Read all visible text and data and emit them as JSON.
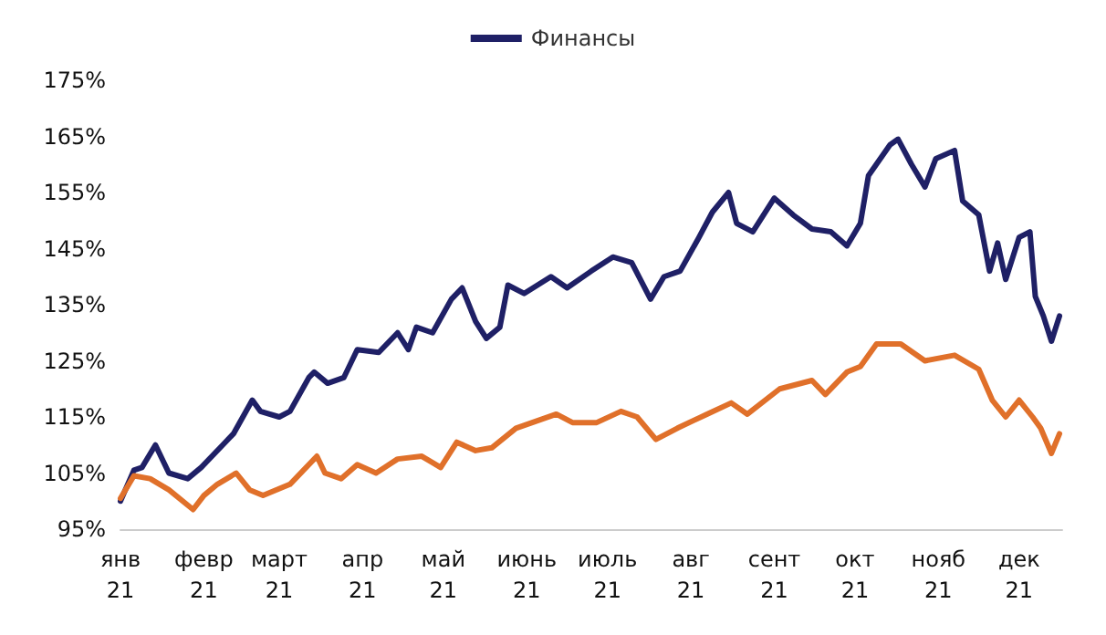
{
  "chart_data": {
    "type": "line",
    "xlim": [
      "2021-01-01",
      "2021-12-17"
    ],
    "xticks": [
      {
        "value": "2021-01-01",
        "label": "янв\n21"
      },
      {
        "value": "2021-02-01",
        "label": "февр\n21"
      },
      {
        "value": "2021-03-01",
        "label": "март\n21"
      },
      {
        "value": "2021-04-01",
        "label": "апр\n21"
      },
      {
        "value": "2021-05-01",
        "label": "май\n21"
      },
      {
        "value": "2021-06-01",
        "label": "июнь\n21"
      },
      {
        "value": "2021-07-01",
        "label": "июль\n21"
      },
      {
        "value": "2021-08-01",
        "label": "авг\n21"
      },
      {
        "value": "2021-09-01",
        "label": "сент\n21"
      },
      {
        "value": "2021-10-01",
        "label": "окт\n21"
      },
      {
        "value": "2021-11-01",
        "label": "нояб\n21"
      },
      {
        "value": "2021-12-01",
        "label": "дек\n21"
      }
    ],
    "ylim": [
      95,
      175
    ],
    "yticks": [
      {
        "value": 95,
        "label": "95%"
      },
      {
        "value": 105,
        "label": "105%"
      },
      {
        "value": 115,
        "label": "115%"
      },
      {
        "value": 125,
        "label": "125%"
      },
      {
        "value": 135,
        "label": "135%"
      },
      {
        "value": 145,
        "label": "145%"
      },
      {
        "value": 155,
        "label": "155%"
      },
      {
        "value": 165,
        "label": "165%"
      },
      {
        "value": 175,
        "label": "175%"
      }
    ],
    "grid": false,
    "legend": "top",
    "marker": "none",
    "line_style": "solid",
    "series": [
      {
        "name": "Финансы",
        "color": "#1f2066",
        "x": [
          "2021-01-01",
          "2021-01-06",
          "2021-01-09",
          "2021-01-14",
          "2021-01-19",
          "2021-01-26",
          "2021-01-31",
          "2021-02-08",
          "2021-02-12",
          "2021-02-19",
          "2021-02-22",
          "2021-03-01",
          "2021-03-05",
          "2021-03-12",
          "2021-03-14",
          "2021-03-19",
          "2021-03-25",
          "2021-03-30",
          "2021-04-07",
          "2021-04-14",
          "2021-04-18",
          "2021-04-21",
          "2021-04-27",
          "2021-05-04",
          "2021-05-08",
          "2021-05-13",
          "2021-05-17",
          "2021-05-22",
          "2021-05-25",
          "2021-05-31",
          "2021-06-10",
          "2021-06-16",
          "2021-06-25",
          "2021-07-03",
          "2021-07-10",
          "2021-07-17",
          "2021-07-22",
          "2021-07-28",
          "2021-08-04",
          "2021-08-09",
          "2021-08-15",
          "2021-08-18",
          "2021-08-24",
          "2021-09-01",
          "2021-09-08",
          "2021-09-15",
          "2021-09-22",
          "2021-09-28",
          "2021-10-03",
          "2021-10-06",
          "2021-10-14",
          "2021-10-17",
          "2021-10-22",
          "2021-10-27",
          "2021-10-31",
          "2021-11-07",
          "2021-11-10",
          "2021-11-16",
          "2021-11-20",
          "2021-11-23",
          "2021-11-26",
          "2021-12-01",
          "2021-12-05",
          "2021-12-07",
          "2021-12-10",
          "2021-12-13",
          "2021-12-16"
        ],
        "values": [
          100,
          105.5,
          106,
          110,
          105,
          104,
          106,
          110,
          112,
          118,
          116,
          115,
          116,
          122,
          123,
          121,
          122,
          127,
          126.5,
          130,
          127,
          131,
          130,
          136,
          138,
          132,
          129,
          131,
          138.5,
          137,
          140,
          138,
          141,
          143.5,
          142.5,
          136,
          140,
          141,
          147,
          151.5,
          155,
          149.5,
          148,
          154,
          151,
          148.5,
          148,
          145.5,
          149.5,
          158,
          163.5,
          164.5,
          160,
          156,
          161,
          162.5,
          153.5,
          151,
          141,
          146,
          139.5,
          147,
          148,
          136.5,
          133,
          128.5,
          133
        ]
      },
      {
        "color": "#e0702a",
        "x": [
          "2021-01-01",
          "2021-01-06",
          "2021-01-12",
          "2021-01-19",
          "2021-01-28",
          "2021-02-01",
          "2021-02-06",
          "2021-02-13",
          "2021-02-18",
          "2021-02-23",
          "2021-03-05",
          "2021-03-15",
          "2021-03-18",
          "2021-03-24",
          "2021-03-30",
          "2021-04-06",
          "2021-04-14",
          "2021-04-23",
          "2021-04-30",
          "2021-05-06",
          "2021-05-13",
          "2021-05-19",
          "2021-05-28",
          "2021-06-12",
          "2021-06-18",
          "2021-06-27",
          "2021-07-06",
          "2021-07-12",
          "2021-07-19",
          "2021-07-27",
          "2021-08-07",
          "2021-08-16",
          "2021-08-22",
          "2021-09-03",
          "2021-09-15",
          "2021-09-20",
          "2021-09-28",
          "2021-10-03",
          "2021-10-09",
          "2021-10-18",
          "2021-10-27",
          "2021-11-07",
          "2021-11-16",
          "2021-11-21",
          "2021-11-26",
          "2021-12-01",
          "2021-12-06",
          "2021-12-09",
          "2021-12-13",
          "2021-12-16"
        ],
        "values": [
          100.5,
          104.5,
          104,
          102,
          98.5,
          101,
          103,
          105,
          102,
          101,
          103,
          108,
          105,
          104,
          106.5,
          105,
          107.5,
          108,
          106,
          110.5,
          109,
          109.5,
          113,
          115.5,
          114,
          114,
          116,
          115,
          111,
          113,
          115.5,
          117.5,
          115.5,
          120,
          121.5,
          119,
          123,
          124,
          128,
          128,
          125,
          126,
          123.5,
          118,
          115,
          118,
          115,
          113,
          108.5,
          112
        ]
      }
    ]
  }
}
